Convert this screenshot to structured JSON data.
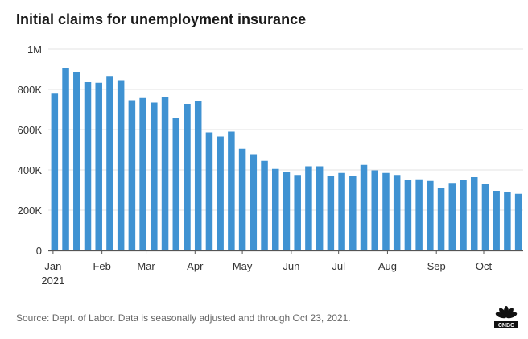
{
  "title": "Initial claims for unemployment insurance",
  "source": "Source: Dept. of Labor. Data is seasonally adjusted and through Oct 23, 2021.",
  "logo_text": "CNBC",
  "colors": {
    "bar": "#3f92d2",
    "grid": "#e3e3e3",
    "axis": "#555555"
  },
  "chart_data": {
    "type": "bar",
    "title": "Initial claims for unemployment insurance",
    "xlabel": "",
    "ylabel": "",
    "ylim": [
      0,
      1000000
    ],
    "grid": true,
    "yticks": [
      {
        "value": 0,
        "label": "0"
      },
      {
        "value": 200000,
        "label": "200K"
      },
      {
        "value": 400000,
        "label": "400K"
      },
      {
        "value": 600000,
        "label": "600K"
      },
      {
        "value": 800000,
        "label": "800K"
      },
      {
        "value": 1000000,
        "label": "1M"
      }
    ],
    "xticks": [
      {
        "label": "Jan",
        "sublabel": "2021",
        "date": "2021-01-01"
      },
      {
        "label": "Feb",
        "date": "2021-02-01"
      },
      {
        "label": "Mar",
        "date": "2021-03-01"
      },
      {
        "label": "Apr",
        "date": "2021-04-01"
      },
      {
        "label": "May",
        "date": "2021-05-01"
      },
      {
        "label": "Jun",
        "date": "2021-06-01"
      },
      {
        "label": "Jul",
        "date": "2021-07-01"
      },
      {
        "label": "Aug",
        "date": "2021-08-01"
      },
      {
        "label": "Sep",
        "date": "2021-09-01"
      },
      {
        "label": "Oct",
        "date": "2021-10-01"
      }
    ],
    "x_range": [
      "2020-12-29",
      "2021-10-26"
    ],
    "x": [
      "2021-01-02",
      "2021-01-09",
      "2021-01-16",
      "2021-01-23",
      "2021-01-30",
      "2021-02-06",
      "2021-02-13",
      "2021-02-20",
      "2021-02-27",
      "2021-03-06",
      "2021-03-13",
      "2021-03-20",
      "2021-03-27",
      "2021-04-03",
      "2021-04-10",
      "2021-04-17",
      "2021-04-24",
      "2021-05-01",
      "2021-05-08",
      "2021-05-15",
      "2021-05-22",
      "2021-05-29",
      "2021-06-05",
      "2021-06-12",
      "2021-06-19",
      "2021-06-26",
      "2021-07-03",
      "2021-07-10",
      "2021-07-17",
      "2021-07-24",
      "2021-07-31",
      "2021-08-07",
      "2021-08-14",
      "2021-08-21",
      "2021-08-28",
      "2021-09-04",
      "2021-09-11",
      "2021-09-18",
      "2021-09-25",
      "2021-10-02",
      "2021-10-09",
      "2021-10-16",
      "2021-10-23"
    ],
    "values": [
      779000,
      904000,
      886000,
      836000,
      833000,
      863000,
      846000,
      746000,
      757000,
      734000,
      764000,
      658000,
      728000,
      742000,
      586000,
      566000,
      590000,
      505000,
      478000,
      445000,
      405000,
      390000,
      375000,
      418000,
      418000,
      368000,
      385000,
      368000,
      425000,
      398000,
      385000,
      375000,
      348000,
      353000,
      345000,
      312000,
      335000,
      351000,
      364000,
      329000,
      296000,
      290000,
      281000
    ]
  }
}
